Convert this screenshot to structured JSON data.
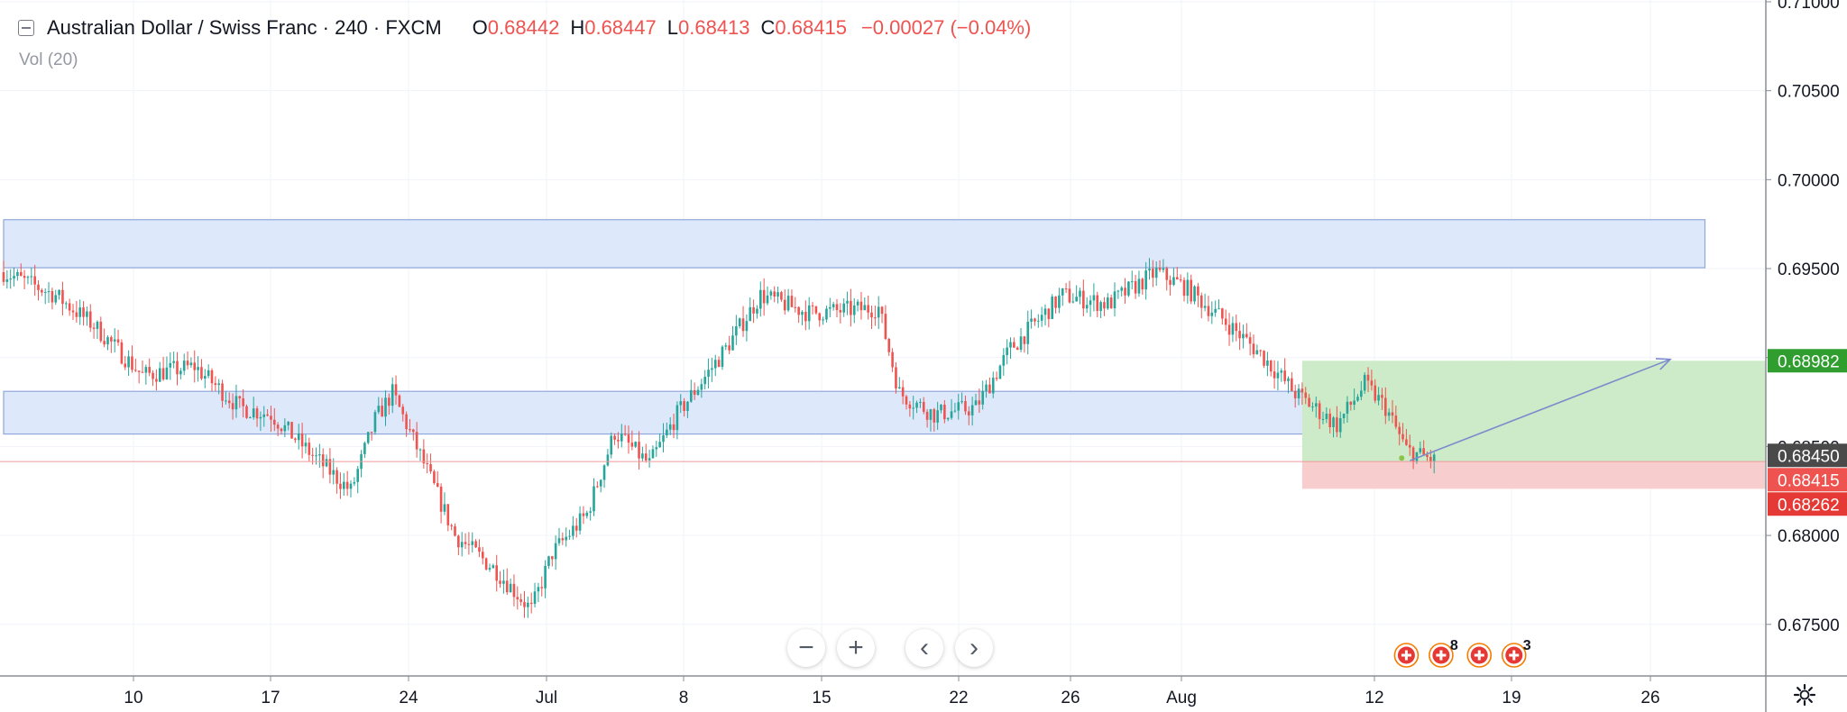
{
  "header": {
    "symbol": "Australian Dollar / Swiss Franc · 240 · FXCM",
    "open_label": "O",
    "open": "0.68442",
    "high_label": "H",
    "high": "0.68447",
    "low_label": "L",
    "low": "0.68413",
    "close_label": "C",
    "close": "0.68415",
    "change": "−0.00027 (−0.04%)",
    "volume": "Vol (20)"
  },
  "chart_data": {
    "type": "candlestick",
    "timeframe": "240",
    "ylim": [
      0.6721,
      0.7101
    ],
    "y_ticks": [
      "0.71000",
      "0.70500",
      "0.70000",
      "0.69500",
      "0.69000",
      "0.68500",
      "0.68000",
      "0.67500"
    ],
    "x_ticks": [
      "10",
      "17",
      "24",
      "Jul",
      "8",
      "15",
      "22",
      "26",
      "Aug",
      "12",
      "19",
      "26"
    ],
    "price_labels": [
      {
        "text": "0.68982",
        "value": 0.68982,
        "color": "#2f9e2f"
      },
      {
        "text": "0.68450",
        "value": 0.6845,
        "color": "#4a4a4a"
      },
      {
        "text": "0.68415",
        "value": 0.68415,
        "color": "#ef5350"
      },
      {
        "text": "0.68262",
        "value": 0.68262,
        "color": "#e53935"
      }
    ],
    "anchors": [
      {
        "t": 0,
        "p": 0.6948
      },
      {
        "t": 15,
        "p": 0.6935
      },
      {
        "t": 26,
        "p": 0.6918
      },
      {
        "t": 40,
        "p": 0.689
      },
      {
        "t": 55,
        "p": 0.6895
      },
      {
        "t": 68,
        "p": 0.6872
      },
      {
        "t": 77,
        "p": 0.6868
      },
      {
        "t": 89,
        "p": 0.6845
      },
      {
        "t": 100,
        "p": 0.6825
      },
      {
        "t": 107,
        "p": 0.6865
      },
      {
        "t": 112,
        "p": 0.688
      },
      {
        "t": 120,
        "p": 0.6845
      },
      {
        "t": 130,
        "p": 0.68
      },
      {
        "t": 142,
        "p": 0.678
      },
      {
        "t": 152,
        "p": 0.6758
      },
      {
        "t": 158,
        "p": 0.679
      },
      {
        "t": 168,
        "p": 0.6812
      },
      {
        "t": 176,
        "p": 0.6858
      },
      {
        "t": 186,
        "p": 0.684
      },
      {
        "t": 194,
        "p": 0.6868
      },
      {
        "t": 208,
        "p": 0.6905
      },
      {
        "t": 218,
        "p": 0.6935
      },
      {
        "t": 232,
        "p": 0.6925
      },
      {
        "t": 252,
        "p": 0.6928
      },
      {
        "t": 258,
        "p": 0.688
      },
      {
        "t": 268,
        "p": 0.6868
      },
      {
        "t": 280,
        "p": 0.6872
      },
      {
        "t": 290,
        "p": 0.6905
      },
      {
        "t": 305,
        "p": 0.6935
      },
      {
        "t": 318,
        "p": 0.693
      },
      {
        "t": 332,
        "p": 0.6948
      },
      {
        "t": 340,
        "p": 0.694
      },
      {
        "t": 352,
        "p": 0.692
      },
      {
        "t": 362,
        "p": 0.6902
      },
      {
        "t": 372,
        "p": 0.688
      },
      {
        "t": 384,
        "p": 0.6862
      },
      {
        "t": 392,
        "p": 0.6885
      },
      {
        "t": 398,
        "p": 0.6872
      },
      {
        "t": 404,
        "p": 0.6848
      },
      {
        "t": 412,
        "p": 0.6842
      }
    ],
    "rectangles": [
      {
        "name": "upper-zone",
        "from": 0,
        "to": 490,
        "top": 0.69775,
        "bottom": 0.69505,
        "fill": "#dde8fa",
        "stroke": "#8fa8dc"
      },
      {
        "name": "lower-zone",
        "from": 0,
        "to": 392,
        "top": 0.6881,
        "bottom": 0.6857,
        "fill": "#dde8fa",
        "stroke": "#8fa8dc"
      }
    ],
    "position": {
      "from": 374,
      "to": 556,
      "entry": 0.68415,
      "target": 0.68982,
      "stop": 0.68262,
      "profit_fill": "#cdebc9",
      "loss_fill": "#f8cdcd"
    },
    "projection": {
      "from_t": 405,
      "from_p": 0.6842,
      "to_t": 480,
      "to_p": 0.6899,
      "color": "#7b8ccc"
    },
    "events": [
      {
        "t": 404,
        "count": ""
      },
      {
        "t": 414,
        "count": "8"
      },
      {
        "t": 425,
        "count": ""
      },
      {
        "t": 435,
        "count": "3"
      }
    ],
    "colors": {
      "up": "#26a69a",
      "down": "#ef5350"
    }
  },
  "controls": {
    "zoom_out": "−",
    "zoom_in": "+",
    "scroll_left": "‹",
    "scroll_right": "›"
  }
}
